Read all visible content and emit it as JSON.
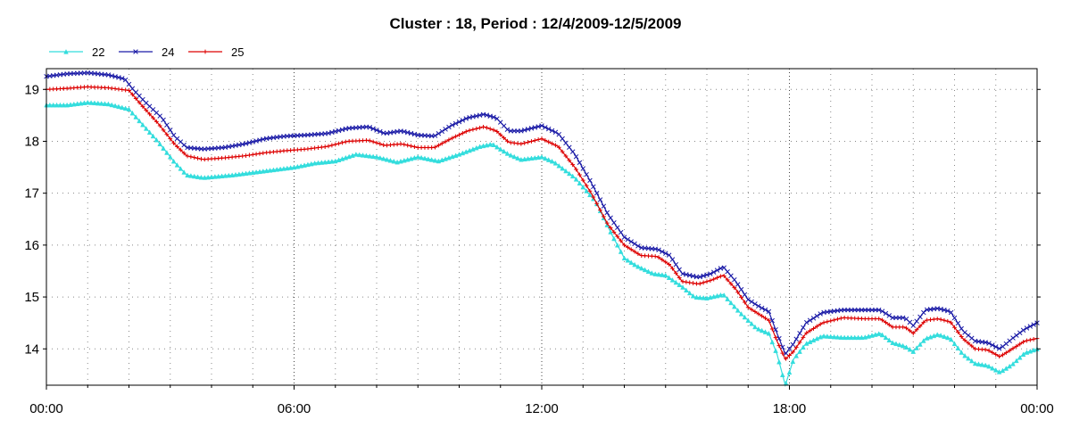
{
  "chart_data": {
    "type": "line",
    "title": "Cluster : 18, Period : 12/4/2009-12/5/2009",
    "xlabel": "",
    "ylabel": "",
    "x_ticks": [
      "00:00",
      "06:00",
      "12:00",
      "18:00",
      "00:00"
    ],
    "x_range_hours": [
      0,
      24
    ],
    "y_ticks": [
      14,
      15,
      16,
      17,
      18,
      19
    ],
    "ylim": [
      13.3,
      19.4
    ],
    "grid": true,
    "legend_position": "top-left",
    "series": [
      {
        "name": "22",
        "color": "#33dddd",
        "marker": "triangle",
        "points": [
          [
            0,
            18.7
          ],
          [
            0.5,
            18.7
          ],
          [
            1,
            18.75
          ],
          [
            1.5,
            18.72
          ],
          [
            2,
            18.62
          ],
          [
            2.3,
            18.35
          ],
          [
            2.7,
            18.0
          ],
          [
            3.1,
            17.6
          ],
          [
            3.4,
            17.35
          ],
          [
            3.8,
            17.3
          ],
          [
            4.5,
            17.35
          ],
          [
            5,
            17.4
          ],
          [
            5.5,
            17.45
          ],
          [
            6,
            17.5
          ],
          [
            6.5,
            17.58
          ],
          [
            7,
            17.62
          ],
          [
            7.5,
            17.75
          ],
          [
            8,
            17.7
          ],
          [
            8.5,
            17.6
          ],
          [
            9,
            17.7
          ],
          [
            9.5,
            17.62
          ],
          [
            10,
            17.75
          ],
          [
            10.5,
            17.9
          ],
          [
            10.8,
            17.95
          ],
          [
            11.2,
            17.75
          ],
          [
            11.5,
            17.65
          ],
          [
            12,
            17.7
          ],
          [
            12.3,
            17.6
          ],
          [
            12.8,
            17.3
          ],
          [
            13.3,
            16.85
          ],
          [
            13.7,
            16.2
          ],
          [
            14,
            15.75
          ],
          [
            14.3,
            15.6
          ],
          [
            14.7,
            15.45
          ],
          [
            15,
            15.42
          ],
          [
            15.4,
            15.2
          ],
          [
            15.7,
            15.0
          ],
          [
            16,
            14.98
          ],
          [
            16.4,
            15.05
          ],
          [
            16.8,
            14.7
          ],
          [
            17.2,
            14.4
          ],
          [
            17.5,
            14.3
          ],
          [
            17.7,
            13.9
          ],
          [
            17.9,
            13.3
          ],
          [
            18.1,
            13.8
          ],
          [
            18.4,
            14.1
          ],
          [
            18.8,
            14.25
          ],
          [
            19.3,
            14.22
          ],
          [
            19.8,
            14.22
          ],
          [
            20.2,
            14.3
          ],
          [
            20.5,
            14.12
          ],
          [
            20.8,
            14.05
          ],
          [
            21.0,
            13.95
          ],
          [
            21.3,
            14.2
          ],
          [
            21.6,
            14.28
          ],
          [
            21.9,
            14.2
          ],
          [
            22.2,
            13.9
          ],
          [
            22.5,
            13.72
          ],
          [
            22.8,
            13.68
          ],
          [
            23.1,
            13.55
          ],
          [
            23.4,
            13.7
          ],
          [
            23.7,
            13.92
          ],
          [
            24,
            14.0
          ]
        ]
      },
      {
        "name": "24",
        "color": "#1a1aa6",
        "marker": "x",
        "points": [
          [
            0,
            19.25
          ],
          [
            0.5,
            19.3
          ],
          [
            1,
            19.32
          ],
          [
            1.5,
            19.28
          ],
          [
            1.9,
            19.2
          ],
          [
            2.1,
            19.0
          ],
          [
            2.4,
            18.75
          ],
          [
            2.8,
            18.45
          ],
          [
            3.1,
            18.1
          ],
          [
            3.4,
            17.88
          ],
          [
            3.8,
            17.85
          ],
          [
            4.3,
            17.88
          ],
          [
            4.8,
            17.95
          ],
          [
            5.3,
            18.05
          ],
          [
            5.8,
            18.1
          ],
          [
            6.3,
            18.12
          ],
          [
            6.8,
            18.15
          ],
          [
            7.3,
            18.25
          ],
          [
            7.8,
            18.28
          ],
          [
            8.2,
            18.15
          ],
          [
            8.6,
            18.2
          ],
          [
            9,
            18.12
          ],
          [
            9.4,
            18.1
          ],
          [
            9.8,
            18.3
          ],
          [
            10.2,
            18.45
          ],
          [
            10.6,
            18.52
          ],
          [
            10.9,
            18.45
          ],
          [
            11.2,
            18.2
          ],
          [
            11.5,
            18.2
          ],
          [
            12,
            18.3
          ],
          [
            12.4,
            18.15
          ],
          [
            12.8,
            17.75
          ],
          [
            13.2,
            17.2
          ],
          [
            13.6,
            16.6
          ],
          [
            14,
            16.15
          ],
          [
            14.4,
            15.95
          ],
          [
            14.8,
            15.92
          ],
          [
            15.1,
            15.8
          ],
          [
            15.4,
            15.45
          ],
          [
            15.8,
            15.38
          ],
          [
            16.1,
            15.45
          ],
          [
            16.4,
            15.58
          ],
          [
            16.7,
            15.3
          ],
          [
            17,
            14.95
          ],
          [
            17.3,
            14.8
          ],
          [
            17.5,
            14.72
          ],
          [
            17.7,
            14.3
          ],
          [
            17.9,
            13.9
          ],
          [
            18.1,
            14.1
          ],
          [
            18.4,
            14.5
          ],
          [
            18.8,
            14.7
          ],
          [
            19.3,
            14.75
          ],
          [
            19.8,
            14.75
          ],
          [
            20.2,
            14.75
          ],
          [
            20.5,
            14.6
          ],
          [
            20.8,
            14.6
          ],
          [
            21.0,
            14.45
          ],
          [
            21.3,
            14.75
          ],
          [
            21.6,
            14.78
          ],
          [
            21.9,
            14.72
          ],
          [
            22.2,
            14.35
          ],
          [
            22.5,
            14.15
          ],
          [
            22.8,
            14.12
          ],
          [
            23.1,
            14.0
          ],
          [
            23.4,
            14.2
          ],
          [
            23.7,
            14.38
          ],
          [
            24,
            14.5
          ]
        ]
      },
      {
        "name": "25",
        "color": "#dd0000",
        "marker": "plus",
        "points": [
          [
            0,
            19.0
          ],
          [
            0.5,
            19.02
          ],
          [
            1,
            19.05
          ],
          [
            1.5,
            19.03
          ],
          [
            2,
            18.98
          ],
          [
            2.3,
            18.7
          ],
          [
            2.7,
            18.35
          ],
          [
            3.1,
            17.95
          ],
          [
            3.4,
            17.72
          ],
          [
            3.8,
            17.65
          ],
          [
            4.3,
            17.68
          ],
          [
            4.8,
            17.72
          ],
          [
            5.3,
            17.78
          ],
          [
            5.8,
            17.82
          ],
          [
            6.3,
            17.85
          ],
          [
            6.8,
            17.9
          ],
          [
            7.3,
            18.0
          ],
          [
            7.8,
            18.02
          ],
          [
            8.2,
            17.92
          ],
          [
            8.6,
            17.95
          ],
          [
            9,
            17.88
          ],
          [
            9.4,
            17.88
          ],
          [
            9.8,
            18.05
          ],
          [
            10.2,
            18.2
          ],
          [
            10.6,
            18.28
          ],
          [
            10.9,
            18.2
          ],
          [
            11.2,
            17.98
          ],
          [
            11.5,
            17.95
          ],
          [
            12,
            18.05
          ],
          [
            12.4,
            17.9
          ],
          [
            12.8,
            17.5
          ],
          [
            13.2,
            17.0
          ],
          [
            13.6,
            16.4
          ],
          [
            14,
            16.0
          ],
          [
            14.4,
            15.8
          ],
          [
            14.8,
            15.78
          ],
          [
            15.1,
            15.62
          ],
          [
            15.4,
            15.3
          ],
          [
            15.8,
            15.25
          ],
          [
            16.1,
            15.32
          ],
          [
            16.4,
            15.42
          ],
          [
            16.7,
            15.15
          ],
          [
            17,
            14.8
          ],
          [
            17.3,
            14.65
          ],
          [
            17.5,
            14.55
          ],
          [
            17.7,
            14.15
          ],
          [
            17.9,
            13.8
          ],
          [
            18.1,
            13.95
          ],
          [
            18.4,
            14.3
          ],
          [
            18.8,
            14.5
          ],
          [
            19.3,
            14.6
          ],
          [
            19.8,
            14.58
          ],
          [
            20.2,
            14.58
          ],
          [
            20.5,
            14.42
          ],
          [
            20.8,
            14.42
          ],
          [
            21.0,
            14.3
          ],
          [
            21.3,
            14.55
          ],
          [
            21.6,
            14.58
          ],
          [
            21.9,
            14.52
          ],
          [
            22.2,
            14.2
          ],
          [
            22.5,
            14.0
          ],
          [
            22.8,
            13.98
          ],
          [
            23.1,
            13.85
          ],
          [
            23.4,
            14.0
          ],
          [
            23.7,
            14.15
          ],
          [
            24,
            14.2
          ]
        ]
      }
    ]
  }
}
